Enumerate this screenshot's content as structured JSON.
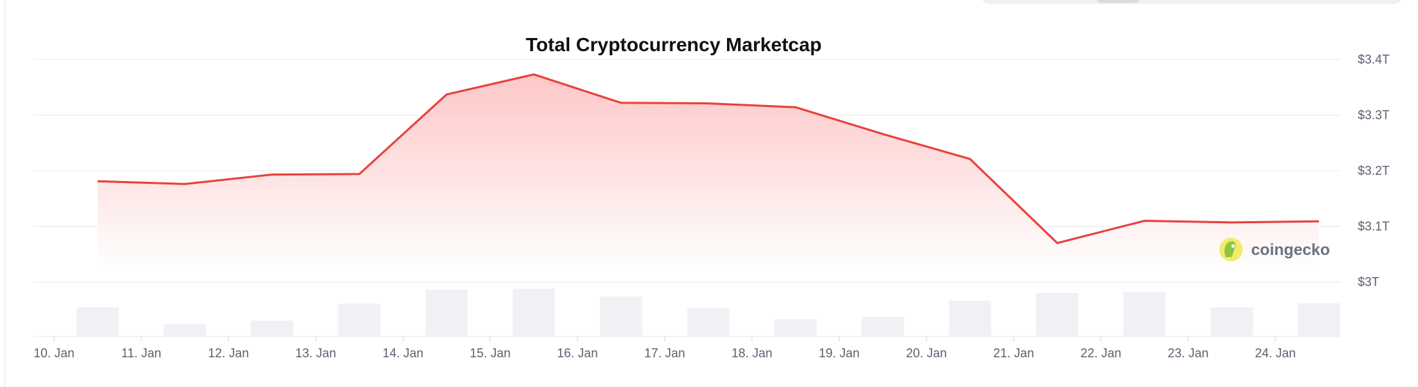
{
  "chart_data": {
    "type": "area",
    "title": "Total Cryptocurrency Marketcap",
    "xlabel": "",
    "ylabel": "",
    "x_tick_labels": [
      "10. Jan",
      "11. Jan",
      "12. Jan",
      "13. Jan",
      "14. Jan",
      "15. Jan",
      "16. Jan",
      "17. Jan",
      "18. Jan",
      "19. Jan",
      "20. Jan",
      "21. Jan",
      "22. Jan",
      "23. Jan",
      "24. Jan"
    ],
    "y_tick_labels": [
      "$3T",
      "$3.1T",
      "$3.2T",
      "$3.3T",
      "$3.4T"
    ],
    "y_tick_values": [
      3.0,
      3.1,
      3.2,
      3.3,
      3.4
    ],
    "ylim": [
      3.0,
      3.4
    ],
    "y_axis_position": "right",
    "grid": true,
    "legend": "none",
    "series": [
      {
        "type": "line-area",
        "x": [
          10.5,
          11.5,
          12.5,
          13.5,
          14.5,
          15.5,
          16.5,
          17.5,
          18.5,
          19.5,
          20.5,
          21.5,
          22.5,
          23.5,
          24.5
        ],
        "values": [
          3.181,
          3.176,
          3.193,
          3.194,
          3.337,
          3.373,
          3.322,
          3.321,
          3.314,
          3.266,
          3.221,
          3.07,
          3.11,
          3.107,
          3.109
        ],
        "color": "#e8413c",
        "fill": "#fdd0d0"
      },
      {
        "type": "volume-bar",
        "x": [
          10.5,
          11.5,
          12.5,
          13.5,
          14.5,
          15.5,
          16.5,
          17.5,
          18.5,
          19.5,
          20.5,
          21.5,
          22.5,
          23.5,
          24.5
        ],
        "values": [
          0.62,
          0.27,
          0.34,
          0.7,
          1.0,
          1.02,
          0.85,
          0.61,
          0.37,
          0.42,
          0.76,
          0.93,
          0.95,
          0.62,
          0.71
        ],
        "color": "#f0f1f5"
      }
    ]
  },
  "watermark": {
    "label": "coingecko",
    "icon": "coingecko-logo-icon"
  },
  "colors": {
    "line": "#e8413c",
    "area_top": "#fdc5c5",
    "area_bottom": "#ffffff",
    "grid": "#e6e8ec",
    "volume": "#f0f1f5"
  }
}
